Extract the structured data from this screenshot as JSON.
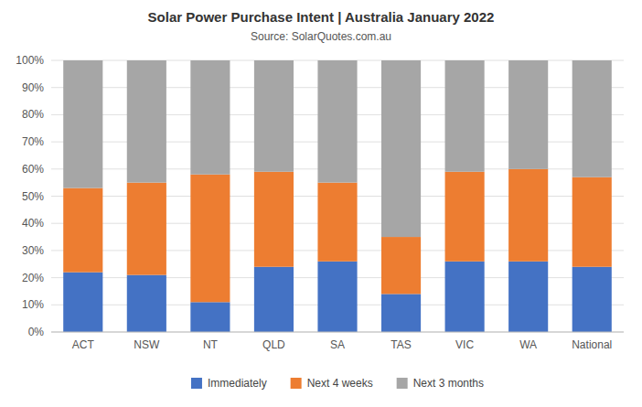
{
  "chart_data": {
    "type": "bar",
    "stacked": true,
    "title": "Solar Power Purchase Intent | Australia January 2022",
    "subtitle": "Source: SolarQuotes.com.au",
    "categories": [
      "ACT",
      "NSW",
      "NT",
      "QLD",
      "SA",
      "TAS",
      "VIC",
      "WA",
      "National"
    ],
    "series": [
      {
        "name": "Immediately",
        "color": "#4472c4",
        "values": [
          22,
          21,
          11,
          24,
          26,
          14,
          26,
          26,
          24
        ]
      },
      {
        "name": "Next 4 weeks",
        "color": "#ed7d31",
        "values": [
          31,
          34,
          47,
          35,
          29,
          21,
          33,
          34,
          33
        ]
      },
      {
        "name": "Next 3 months",
        "color": "#a6a6a6",
        "values": [
          47,
          45,
          42,
          41,
          45,
          65,
          41,
          40,
          43
        ]
      }
    ],
    "ylim": [
      0,
      100
    ],
    "yticks": [
      {
        "value": 0,
        "label": "0%"
      },
      {
        "value": 10,
        "label": "10%"
      },
      {
        "value": 20,
        "label": "20%"
      },
      {
        "value": 30,
        "label": "30%"
      },
      {
        "value": 40,
        "label": "40%"
      },
      {
        "value": 50,
        "label": "50%"
      },
      {
        "value": 60,
        "label": "60%"
      },
      {
        "value": 70,
        "label": "70%"
      },
      {
        "value": 80,
        "label": "80%"
      },
      {
        "value": 90,
        "label": "90%"
      },
      {
        "value": 100,
        "label": "100%"
      }
    ],
    "grid": true,
    "legend": "bottom"
  }
}
